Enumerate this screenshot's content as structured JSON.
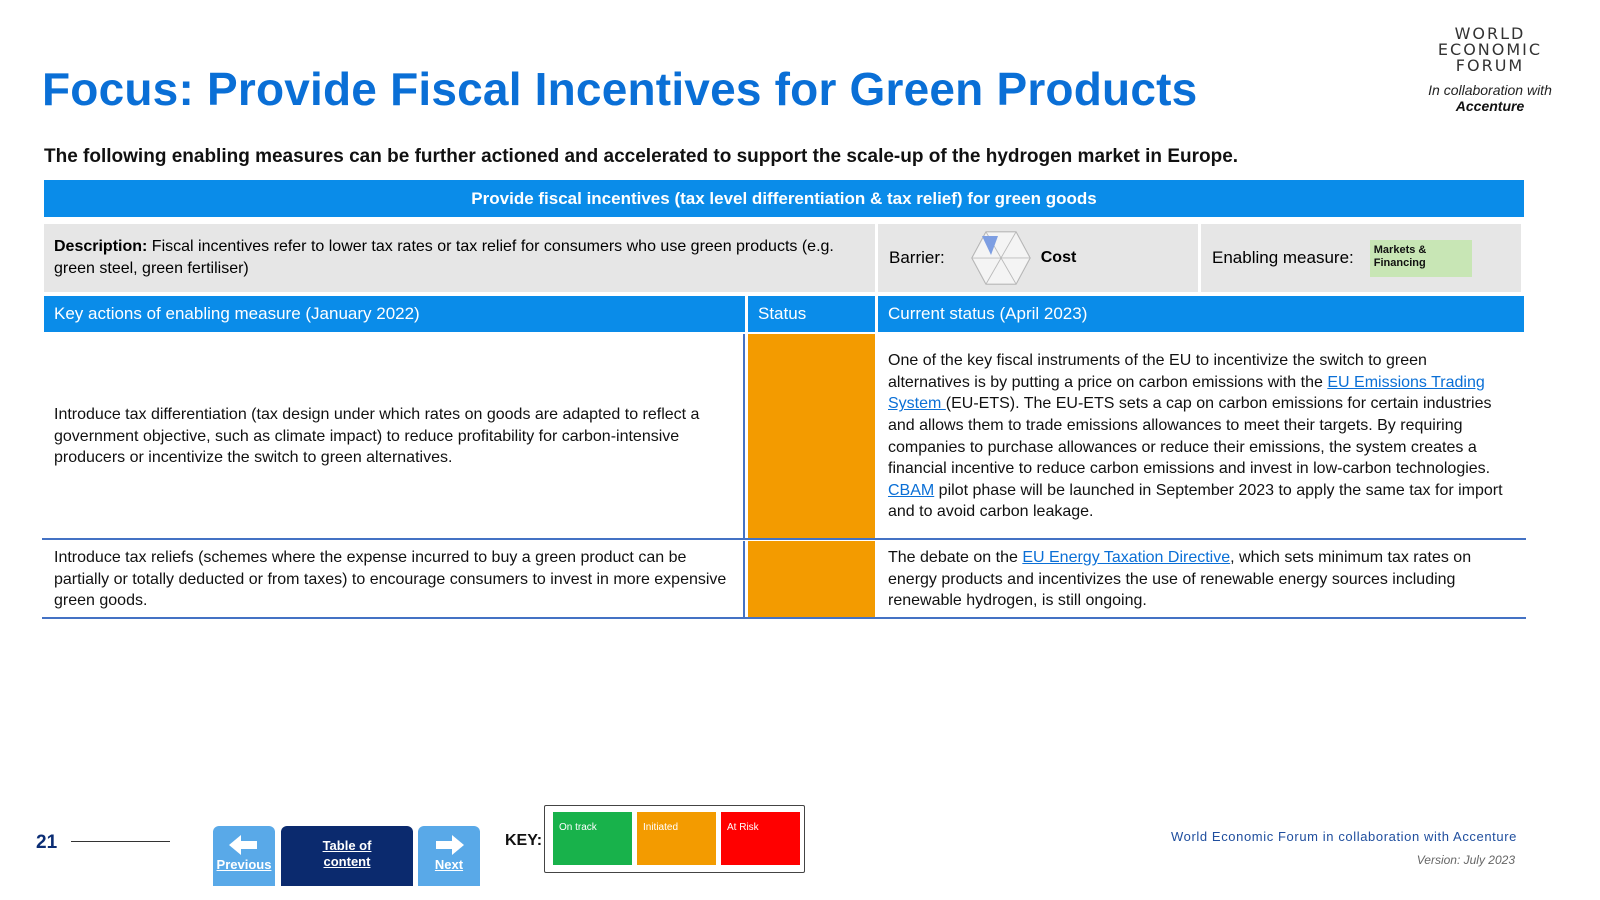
{
  "header": {
    "title": "Focus: Provide Fiscal Incentives for Green Products",
    "subtitle": "The following enabling measures can be further actioned and accelerated to support the scale-up of the hydrogen market in Europe."
  },
  "logo": {
    "line1": "WORLD",
    "line2": "ECONOMIC",
    "line3": "FORUM",
    "collab_text": "In collaboration with",
    "partner": "Accenture"
  },
  "banner": "Provide fiscal incentives (tax level differentiation & tax relief) for green goods",
  "description": {
    "label": "Description:",
    "text": " Fiscal incentives refer to lower tax rates or tax relief for consumers who use green products (e.g. green steel, green fertiliser)",
    "barrier_label": "Barrier:",
    "barrier_value": "Cost",
    "barrier_icon": "hexagon-segment-icon",
    "enabling_label": "Enabling measure:",
    "enabling_tag": "Markets & Financing",
    "enabling_tag_color": "#c8e6b5"
  },
  "table": {
    "headers": [
      "Key actions of enabling measure (January 2022)",
      "Status",
      "Current status (April 2023)"
    ],
    "rows": [
      {
        "action": "Introduce tax differentiation (tax design under which rates on goods are adapted to reflect a government objective, such as climate impact) to reduce profitability for carbon-intensive producers or incentivize the switch to green alternatives.",
        "status": "Initiated",
        "status_color": "#f39b00",
        "current": {
          "p1": "One of the key fiscal instruments of the EU to incentivize the switch to green alternatives is by putting a price on carbon emissions with the ",
          "link1": "EU Emissions Trading System ",
          "p2": "(EU-ETS). The EU-ETS sets a cap on carbon emissions for certain industries and allows them to trade emissions allowances to meet their targets. By requiring companies to purchase allowances or reduce their emissions, the system creates a financial incentive to reduce carbon emissions and invest in low-carbon technologies. ",
          "link2": "CBAM",
          "p3": " pilot phase will be launched in September 2023 to apply the same tax for import and to avoid carbon leakage."
        }
      },
      {
        "action": "Introduce tax reliefs (schemes where the expense incurred to buy a green product can be partially or totally deducted or from taxes) to encourage consumers to invest in more expensive green goods.",
        "status": "Initiated",
        "status_color": "#f39b00",
        "current": {
          "p1": "The debate on the ",
          "link1": "EU Energy Taxation Directive",
          "p2": ", which sets minimum tax rates on energy products and incentivizes the use of renewable energy sources including renewable hydrogen, is still ongoing."
        }
      }
    ]
  },
  "footer": {
    "page_number": "21",
    "nav": {
      "previous": "Previous",
      "toc_line1": "Table of",
      "toc_line2": "content",
      "next": "Next"
    },
    "key_label": "KEY:",
    "key_items": [
      {
        "label": "On track",
        "color": "#18b24b"
      },
      {
        "label": "Initiated",
        "color": "#f39b00"
      },
      {
        "label": "At Risk",
        "color": "#ff0000"
      }
    ],
    "org": "World Economic Forum in collaboration with Accenture",
    "version": "Version: July 2023"
  }
}
